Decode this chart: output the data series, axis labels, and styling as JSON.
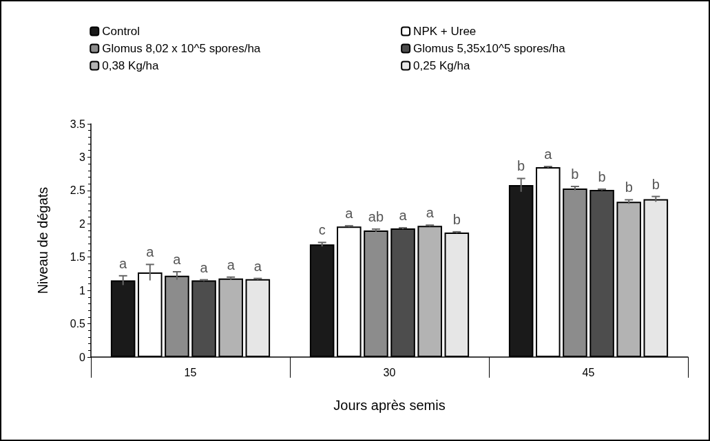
{
  "chart_data": {
    "type": "bar",
    "xlabel": "Jours après semis",
    "ylabel": "Niveau de dégats",
    "categories": [
      "15",
      "30",
      "45"
    ],
    "ylim": [
      0,
      3.5
    ],
    "yticks": [
      0,
      0.5,
      1,
      1.5,
      2,
      2.5,
      3,
      3.5
    ],
    "grid": false,
    "legend": "top",
    "series": [
      {
        "name": "Control",
        "color": "#1a1a1a",
        "values": [
          1.15,
          1.69,
          2.58
        ],
        "errors": [
          0.07,
          0.03,
          0.1
        ],
        "value_labels": [
          "a",
          "c",
          "b"
        ]
      },
      {
        "name": "NPK + Uree",
        "color": "#ffffff",
        "values": [
          1.27,
          1.96,
          2.85
        ],
        "errors": [
          0.12,
          0.01,
          0.01
        ],
        "value_labels": [
          "a",
          "a",
          "a"
        ]
      },
      {
        "name": "Glomus 8,02 x 10^5 spores/ha",
        "color": "#8c8c8c",
        "values": [
          1.22,
          1.9,
          2.53
        ],
        "errors": [
          0.06,
          0.02,
          0.03
        ],
        "value_labels": [
          "a",
          "ab",
          "b"
        ]
      },
      {
        "name": "Glomus 5,35x10^5 spores/ha",
        "color": "#4d4d4d",
        "values": [
          1.15,
          1.93,
          2.51
        ],
        "errors": [
          0.01,
          0.01,
          0.01
        ],
        "value_labels": [
          "a",
          "a",
          "b"
        ]
      },
      {
        "name": "0,38 Kg/ha",
        "color": "#b3b3b3",
        "values": [
          1.18,
          1.97,
          2.33
        ],
        "errors": [
          0.02,
          0.01,
          0.03
        ],
        "value_labels": [
          "a",
          "a",
          "b"
        ]
      },
      {
        "name": "0,25 Kg/ha",
        "color": "#e6e6e6",
        "values": [
          1.17,
          1.87,
          2.37
        ],
        "errors": [
          0.01,
          0.01,
          0.04
        ],
        "value_labels": [
          "a",
          "b",
          "b"
        ]
      }
    ]
  }
}
